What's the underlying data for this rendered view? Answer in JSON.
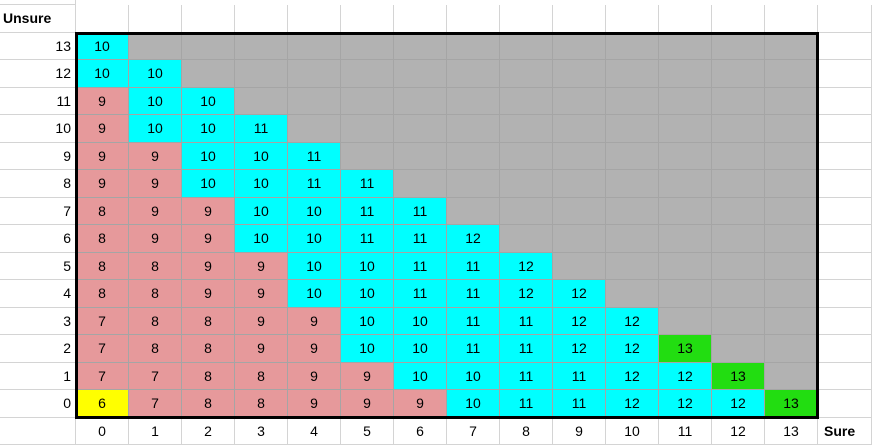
{
  "corner": "Unsure",
  "x_label": "Sure",
  "columns": [
    0,
    1,
    2,
    3,
    4,
    5,
    6,
    7,
    8,
    9,
    10,
    11,
    12,
    13
  ],
  "rows": [
    {
      "label": 13,
      "values": [
        10
      ]
    },
    {
      "label": 12,
      "values": [
        10,
        10
      ]
    },
    {
      "label": 11,
      "values": [
        9,
        10,
        10
      ]
    },
    {
      "label": 10,
      "values": [
        9,
        10,
        10,
        11
      ]
    },
    {
      "label": 9,
      "values": [
        9,
        9,
        10,
        10,
        11
      ]
    },
    {
      "label": 8,
      "values": [
        9,
        9,
        10,
        10,
        11,
        11
      ]
    },
    {
      "label": 7,
      "values": [
        8,
        9,
        9,
        10,
        10,
        11,
        11
      ]
    },
    {
      "label": 6,
      "values": [
        8,
        9,
        9,
        10,
        10,
        11,
        11,
        12
      ]
    },
    {
      "label": 5,
      "values": [
        8,
        8,
        9,
        9,
        10,
        10,
        11,
        11,
        12
      ]
    },
    {
      "label": 4,
      "values": [
        8,
        8,
        9,
        9,
        10,
        10,
        11,
        11,
        12,
        12
      ]
    },
    {
      "label": 3,
      "values": [
        7,
        8,
        8,
        9,
        9,
        10,
        10,
        11,
        11,
        12,
        12
      ]
    },
    {
      "label": 2,
      "values": [
        7,
        8,
        8,
        9,
        9,
        10,
        10,
        11,
        11,
        12,
        12,
        13
      ]
    },
    {
      "label": 1,
      "values": [
        7,
        7,
        8,
        8,
        9,
        9,
        10,
        10,
        11,
        11,
        12,
        12,
        13
      ]
    },
    {
      "label": 0,
      "values": [
        6,
        7,
        8,
        8,
        9,
        9,
        9,
        10,
        11,
        11,
        12,
        12,
        12,
        13
      ]
    }
  ]
}
